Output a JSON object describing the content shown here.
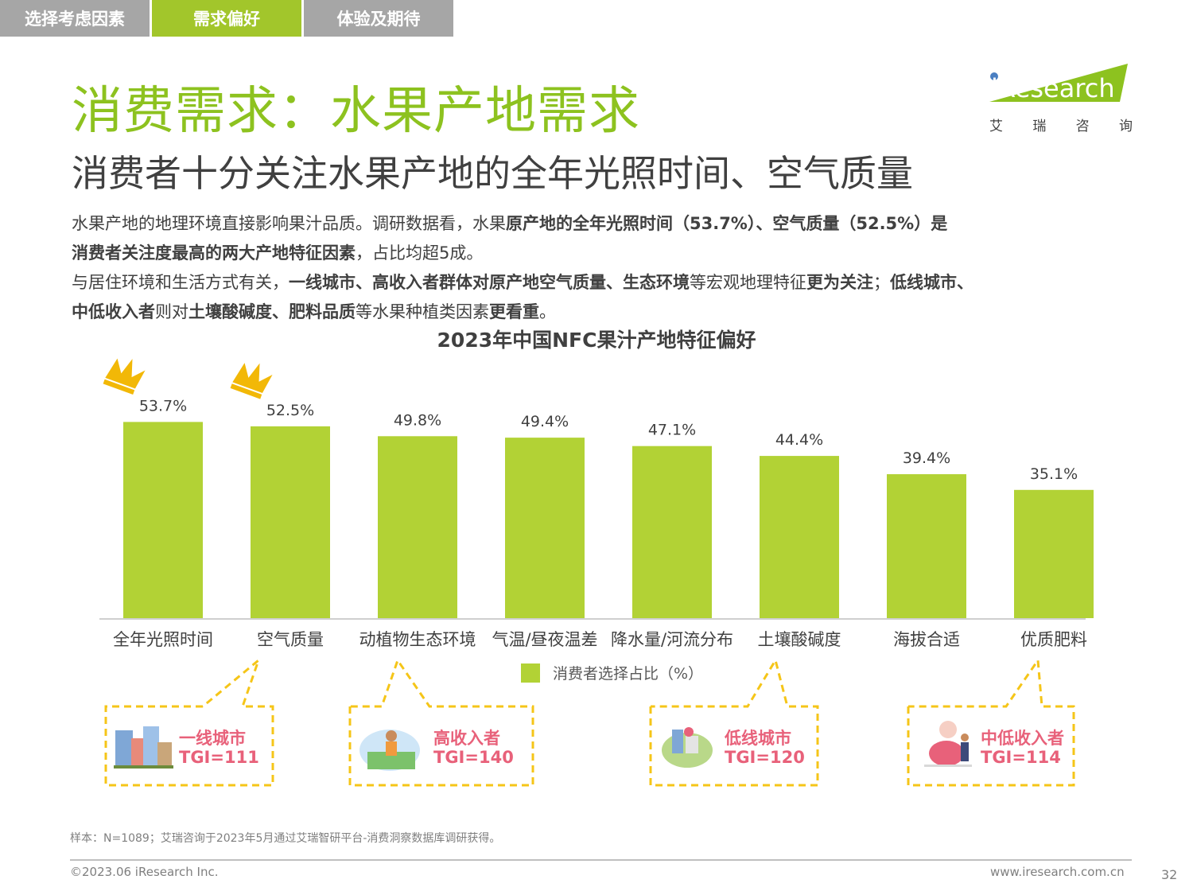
{
  "tabs": [
    "选择考虑因素",
    "需求偏好",
    "体验及期待"
  ],
  "title": "消费需求：水果产地需求",
  "subtitle": "消费者十分关注水果产地的全年光照时间、空气质量",
  "logo": {
    "i": "i",
    "rest": "Research",
    "cn": [
      "艾",
      "瑞",
      "咨",
      "询"
    ]
  },
  "description": {
    "p1_a": "水果产地的地理环境直接影响果汁品质。调研数据看，水果",
    "p1_b": "原产地的全年光照时间（53.7%）、空气质量（52.5%）是",
    "p2_a": "消费者关注度最高的两大产地特征因素",
    "p2_b": "，占比均超5成。",
    "p3_a": "与居住环境和生活方式有关，",
    "p3_b": "一线城市、高收入者群体对原产地空气质量、生态环境",
    "p3_c": "等宏观地理特征",
    "p3_d": "更为关注",
    "p3_e": "；",
    "p3_f": "低线城市、",
    "p4_a": "中低收入者",
    "p4_b": "则对",
    "p4_c": "土壤酸碱度、肥料品质",
    "p4_d": "等水果种植类因素",
    "p4_e": "更看重",
    "p4_f": "。"
  },
  "chart_data": {
    "type": "bar",
    "title": "2023年中国NFC果汁产地特征偏好",
    "categories": [
      "全年光照时间",
      "空气质量",
      "动植物生态环境",
      "气温/昼夜温差",
      "降水量/河流分布",
      "土壤酸碱度",
      "海拔合适",
      "优质肥料"
    ],
    "series": [
      {
        "name": "消费者选择占比（%）",
        "values": [
          53.7,
          52.5,
          49.8,
          49.4,
          47.1,
          44.4,
          39.4,
          35.1
        ]
      }
    ],
    "ylim": [
      0,
      54
    ],
    "color": "#b2d235",
    "value_suffix": "%",
    "crowned": [
      0,
      1
    ],
    "legend": "bottom"
  },
  "callouts": [
    {
      "name": "一线城市",
      "tgi": "TGI=111"
    },
    {
      "name": "高收入者",
      "tgi": "TGI=140"
    },
    {
      "name": "低线城市",
      "tgi": "TGI=120"
    },
    {
      "name": "中低收入者",
      "tgi": "TGI=114"
    }
  ],
  "note": "样本：N=1089；艾瑞咨询于2023年5月通过艾瑞智研平台-消费洞察数据库调研获得。",
  "footer": {
    "copyright": "©2023.06 iResearch Inc.",
    "url": "www.iresearch.com.cn",
    "page": "32"
  }
}
